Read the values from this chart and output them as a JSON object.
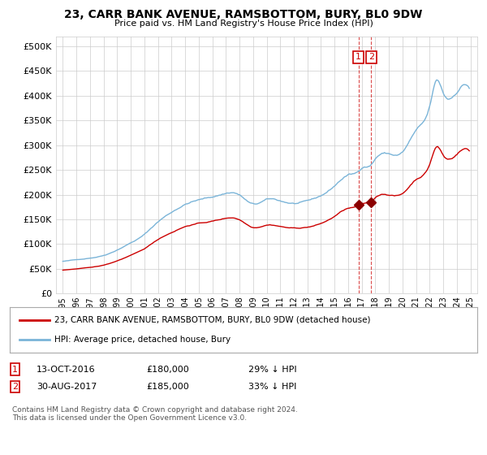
{
  "title": "23, CARR BANK AVENUE, RAMSBOTTOM, BURY, BL0 9DW",
  "subtitle": "Price paid vs. HM Land Registry's House Price Index (HPI)",
  "legend_line1": "23, CARR BANK AVENUE, RAMSBOTTOM, BURY, BL0 9DW (detached house)",
  "legend_line2": "HPI: Average price, detached house, Bury",
  "footer": "Contains HM Land Registry data © Crown copyright and database right 2024.\nThis data is licensed under the Open Government Licence v3.0.",
  "annotation1_date": "13-OCT-2016",
  "annotation1_price": "£180,000",
  "annotation1_hpi": "29% ↓ HPI",
  "annotation2_date": "30-AUG-2017",
  "annotation2_price": "£185,000",
  "annotation2_hpi": "33% ↓ HPI",
  "sale1_x": 2016.79,
  "sale1_y": 180000,
  "sale2_x": 2017.66,
  "sale2_y": 185000,
  "vline1_x": 2016.79,
  "vline2_x": 2017.66,
  "hpi_color": "#7ab4d8",
  "price_color": "#cc0000",
  "sale_dot_color": "#8B0000",
  "vline_color": "#cc0000",
  "annotation_box_color": "#cc0000",
  "ylim": [
    0,
    520000
  ],
  "yticks": [
    0,
    50000,
    100000,
    150000,
    200000,
    250000,
    300000,
    350000,
    400000,
    450000,
    500000
  ],
  "xlim": [
    1994.5,
    2025.5
  ],
  "xtick_years": [
    1995,
    1996,
    1997,
    1998,
    1999,
    2000,
    2001,
    2002,
    2003,
    2004,
    2005,
    2006,
    2007,
    2008,
    2009,
    2010,
    2011,
    2012,
    2013,
    2014,
    2015,
    2016,
    2017,
    2018,
    2019,
    2020,
    2021,
    2022,
    2023,
    2024,
    2025
  ]
}
